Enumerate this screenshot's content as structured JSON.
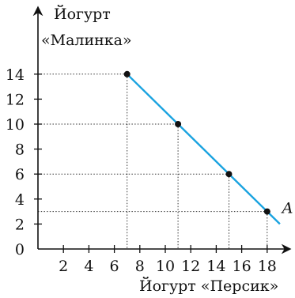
{
  "chart_data": {
    "type": "line",
    "ylabel_lines": [
      "Йогурт",
      "«Малинка»"
    ],
    "xlabel": "Йогурт «Персик»",
    "xlim": [
      0,
      20
    ],
    "ylim": [
      0,
      16
    ],
    "x_ticks": [
      2,
      4,
      6,
      8,
      10,
      12,
      14,
      16,
      18
    ],
    "y_ticks": [
      0,
      2,
      4,
      6,
      8,
      10,
      12,
      14
    ],
    "series": [
      {
        "color": "#1aa3e0",
        "x": [
          7,
          19
        ],
        "y": [
          14,
          2
        ]
      }
    ],
    "points": [
      {
        "x": 7,
        "y": 14,
        "label": ""
      },
      {
        "x": 11,
        "y": 10,
        "label": ""
      },
      {
        "x": 15,
        "y": 6,
        "label": ""
      },
      {
        "x": 18,
        "y": 3,
        "label": "A"
      }
    ],
    "guides": true
  }
}
